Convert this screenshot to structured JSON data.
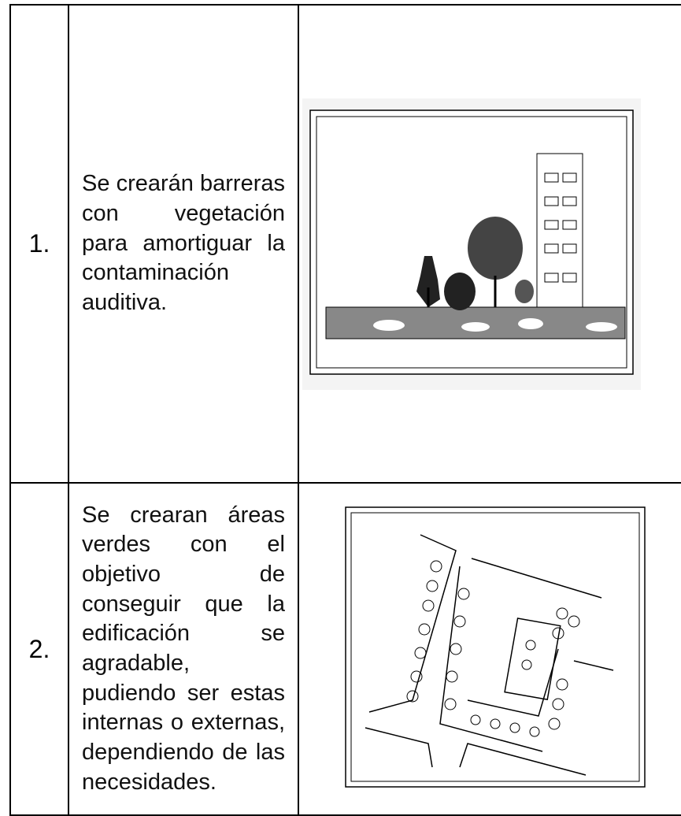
{
  "table": {
    "rows": [
      {
        "number": "1.",
        "text": "Se crearán barreras con vegetación para amortiguar la contaminación auditiva."
      },
      {
        "number": "2.",
        "text": "Se crearan áreas verdes con el objetivo de conseguir que la edificación se agradable, pudiendo ser estas internas o externas, dependiendo de las necesidades."
      }
    ]
  }
}
